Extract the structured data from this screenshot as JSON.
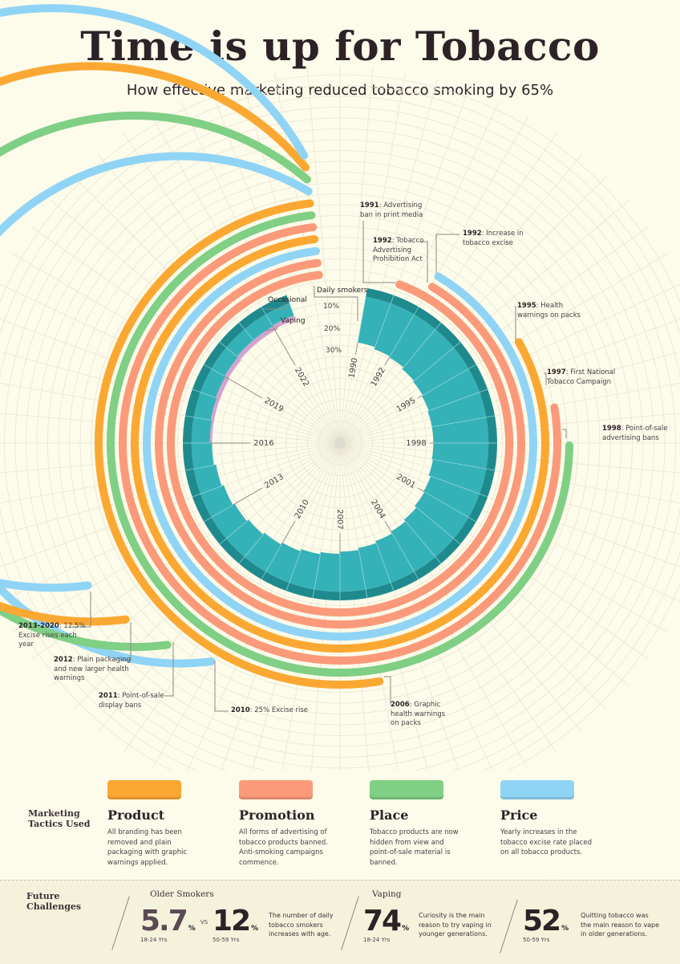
{
  "header": {
    "title": "Time is up for Tobacco",
    "subtitle": "How effective marketing reduced tobacco smoking by 65%"
  },
  "chart_data": {
    "type": "radial-bar",
    "series": [
      {
        "name": "Daily smokers",
        "color": "#35b2b8",
        "years": [
          1990,
          1991,
          1992,
          1993,
          1994,
          1995,
          1996,
          1997,
          1998,
          1999,
          2000,
          2001,
          2002,
          2003,
          2004,
          2005,
          2006,
          2007,
          2008,
          2009,
          2010,
          2011,
          2012,
          2013,
          2014,
          2015,
          2016,
          2017,
          2018,
          2019,
          2020,
          2021,
          2022
        ],
        "values": [
          25.5,
          26.5,
          27,
          28,
          28.5,
          29,
          29.5,
          29.5,
          29.5,
          29,
          28,
          27.5,
          26.5,
          25.5,
          24.5,
          23.5,
          22.5,
          21.5,
          20.5,
          19.5,
          18.5,
          17.5,
          16.5,
          15.5,
          14.5,
          13.5,
          12.5,
          12,
          11.5,
          11,
          10.5,
          10.5,
          10
        ]
      },
      {
        "name": "Occasional",
        "color": "#1f8a8e",
        "value": 4
      },
      {
        "name": "Vaping",
        "color": "#d3a3d0",
        "years": [
          2016,
          2017,
          2018,
          2019,
          2020,
          2021,
          2022
        ],
        "values": [
          1,
          1.5,
          2,
          2,
          2,
          2,
          2
        ]
      }
    ],
    "radial_ticks": [
      "10%",
      "20%",
      "30%"
    ],
    "year_labels": [
      "1990",
      "1992",
      "1995",
      "1998",
      "2001",
      "2004",
      "2007",
      "2010",
      "2013",
      "2016",
      "2019",
      "2022"
    ],
    "events": [
      {
        "year": 1991,
        "tactic": "Promotion",
        "bold": "1991",
        "text": ": Advertising",
        "text2": "ban in print media"
      },
      {
        "year": 1992,
        "tactic": "Promotion",
        "bold": "1992",
        "text": ": Tobacco",
        "text2": "Advertising",
        "text3": "Prohibition Act"
      },
      {
        "year": 1992,
        "tactic": "Price",
        "bold": "1992",
        "text": ": Increase in",
        "text2": "tobacco excise"
      },
      {
        "year": 1995,
        "tactic": "Product",
        "bold": "1995",
        "text": ": Health",
        "text2": "warnings on packs"
      },
      {
        "year": 1997,
        "tactic": "Promotion",
        "bold": "1997",
        "text": ": First National",
        "text2": "Tobacco Campaign"
      },
      {
        "year": 1998,
        "tactic": "Place",
        "bold": "1998",
        "text": ": Point-of-sale",
        "text2": "advertising bans"
      },
      {
        "year": 2006,
        "tactic": "Product",
        "bold": "2006",
        "text": ": Graphic",
        "text2": "health warnings",
        "text3": "on packs"
      },
      {
        "year": 2010,
        "tactic": "Price",
        "bold": "2010",
        "text": ": 25% Excise rise"
      },
      {
        "year": 2011,
        "tactic": "Place",
        "bold": "2011",
        "text": ": Point-of-sale",
        "text2": "display bans"
      },
      {
        "year": 2012,
        "tactic": "Product",
        "bold": "2012",
        "text": ": Plain packaging",
        "text2": "and new larger health",
        "text3": "warnings"
      },
      {
        "year": 2013,
        "tactic": "Price",
        "bold": "2013-2020",
        "text": ": 12.5%",
        "text2": "Excise rises each",
        "text3": "year"
      }
    ],
    "end_year": 2024
  },
  "colors": {
    "Product": "#fba832",
    "Promotion": "#fb9a7a",
    "Place": "#7fcf85",
    "Price": "#90d4f5"
  },
  "legend": {
    "title": "Marketing Tactics Used",
    "items": [
      {
        "name": "Product",
        "desc": "All branding has been removed and plain packaging with graphic warnings applied."
      },
      {
        "name": "Promotion",
        "desc": "All forms of advertising of tobacco products banned. Anti-smoking campaigns commence."
      },
      {
        "name": "Place",
        "desc": "Tobacco products are now hidden from view and point-of-sale material is banned."
      },
      {
        "name": "Price",
        "desc": "Yearly increases in the tobacco excise rate placed on all tobacco products."
      }
    ]
  },
  "future": {
    "title": "Future Challenges",
    "older": {
      "heading": "Older Smokers",
      "v1": "5.7",
      "v1_unit": "%",
      "v1_age": "18-24 Yrs",
      "vs": "VS",
      "v2": "12",
      "v2_unit": "%",
      "v2_age": "50-59 Yrs",
      "desc": "The number of daily tobacco smokers increases with age."
    },
    "vaping": {
      "heading": "Vaping",
      "v1": "74",
      "v1_unit": "%",
      "v1_age": "18-24 Yrs",
      "desc1": "Curiosity is the main reason to try vaping in younger generations.",
      "v2": "52",
      "v2_unit": "%",
      "v2_age": "50-59 Yrs",
      "desc2": "Quitting tobacco was the main reason to vape in older generations."
    }
  }
}
